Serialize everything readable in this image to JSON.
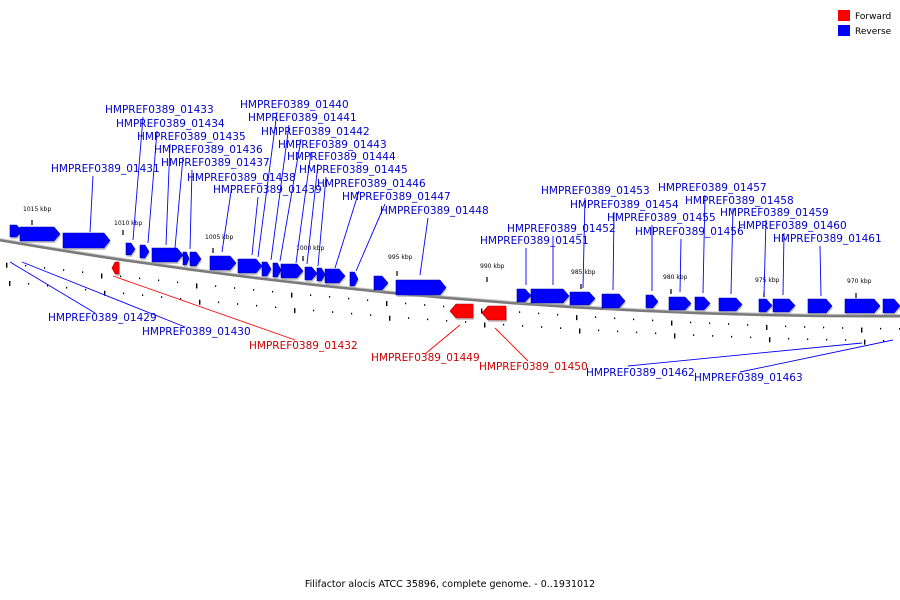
{
  "legend": [
    {
      "label": "Forward",
      "color": "#ff0000"
    },
    {
      "label": "Reverse",
      "color": "#0000ff"
    }
  ],
  "colors": {
    "forward": "#ff0000",
    "reverse": "#0000ff",
    "backbone": "#808080"
  },
  "caption": "Filifactor alocis ATCC 35896, complete genome. - 0..1931012",
  "kbp_ticks": [
    "1015 kbp",
    "1010 kbp",
    "1005 kbp",
    "1000 kbp",
    "995 kbp",
    "990 kbp",
    "985 kbp",
    "980 kbp",
    "975 kbp",
    "970 kbp"
  ],
  "genes": [
    {
      "id": "HMPREF0389_01429",
      "strand": "reverse"
    },
    {
      "id": "HMPREF0389_01430",
      "strand": "reverse"
    },
    {
      "id": "HMPREF0389_01431",
      "strand": "reverse"
    },
    {
      "id": "HMPREF0389_01432",
      "strand": "forward"
    },
    {
      "id": "HMPREF0389_01433",
      "strand": "reverse"
    },
    {
      "id": "HMPREF0389_01434",
      "strand": "reverse"
    },
    {
      "id": "HMPREF0389_01435",
      "strand": "reverse"
    },
    {
      "id": "HMPREF0389_01436",
      "strand": "reverse"
    },
    {
      "id": "HMPREF0389_01437",
      "strand": "reverse"
    },
    {
      "id": "HMPREF0389_01438",
      "strand": "reverse"
    },
    {
      "id": "HMPREF0389_01439",
      "strand": "reverse"
    },
    {
      "id": "HMPREF0389_01440",
      "strand": "reverse"
    },
    {
      "id": "HMPREF0389_01441",
      "strand": "reverse"
    },
    {
      "id": "HMPREF0389_01442",
      "strand": "reverse"
    },
    {
      "id": "HMPREF0389_01443",
      "strand": "reverse"
    },
    {
      "id": "HMPREF0389_01444",
      "strand": "reverse"
    },
    {
      "id": "HMPREF0389_01445",
      "strand": "reverse"
    },
    {
      "id": "HMPREF0389_01446",
      "strand": "reverse"
    },
    {
      "id": "HMPREF0389_01447",
      "strand": "reverse"
    },
    {
      "id": "HMPREF0389_01448",
      "strand": "reverse"
    },
    {
      "id": "HMPREF0389_01449",
      "strand": "forward"
    },
    {
      "id": "HMPREF0389_01450",
      "strand": "forward"
    },
    {
      "id": "HMPREF0389_01451",
      "strand": "reverse"
    },
    {
      "id": "HMPREF0389_01452",
      "strand": "reverse"
    },
    {
      "id": "HMPREF0389_01453",
      "strand": "reverse"
    },
    {
      "id": "HMPREF0389_01454",
      "strand": "reverse"
    },
    {
      "id": "HMPREF0389_01455",
      "strand": "reverse"
    },
    {
      "id": "HMPREF0389_01456",
      "strand": "reverse"
    },
    {
      "id": "HMPREF0389_01457",
      "strand": "reverse"
    },
    {
      "id": "HMPREF0389_01458",
      "strand": "reverse"
    },
    {
      "id": "HMPREF0389_01459",
      "strand": "reverse"
    },
    {
      "id": "HMPREF0389_01460",
      "strand": "reverse"
    },
    {
      "id": "HMPREF0389_01461",
      "strand": "reverse"
    },
    {
      "id": "HMPREF0389_01462",
      "strand": "reverse"
    },
    {
      "id": "HMPREF0389_01463",
      "strand": "reverse"
    }
  ]
}
